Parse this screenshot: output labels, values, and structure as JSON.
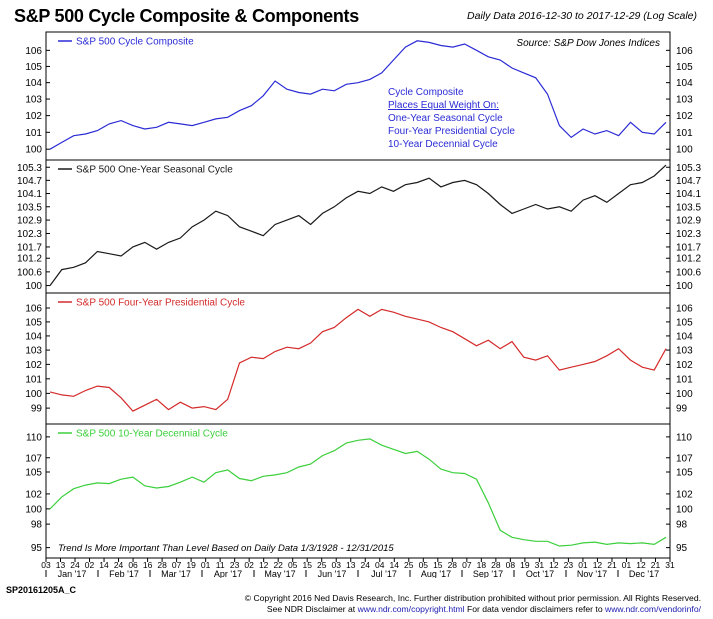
{
  "title": "S&P 500 Cycle Composite & Components",
  "subtitle": "Daily Data 2016-12-30 to 2017-12-29 (Log Scale)",
  "footer_id": "SP20161205A_C",
  "copyright_line1": "© Copyright 2016 Ned Davis Research, Inc. Further distribution prohibited without prior permission. All Rights Reserved.",
  "copyright_line2_prefix": "See NDR Disclaimer at ",
  "copyright_link1": "www.ndr.com/copyright.html",
  "copyright_line2_mid": "   For data vendor disclaimers refer to ",
  "copyright_link2": "www.ndr.com/vendorinfo/",
  "source": "Source:   S&P Dow Jones Indices",
  "annotation_box": [
    "Cycle Composite",
    "Places Equal Weight On:",
    "One-Year Seasonal Cycle",
    "Four-Year Presidential Cycle",
    "10-Year Decennial Cycle"
  ],
  "bottom_note": "Trend Is More Important Than Level Based on Daily Data 1/3/1928 - 12/31/2015",
  "colors": {
    "composite": "#2b2bd6",
    "seasonal": "#1a1a1a",
    "presidential": "#d42a2a",
    "decennial": "#3ccf3c"
  },
  "chart_data": [
    {
      "type": "line",
      "series": [
        {
          "name": "S&P 500 Cycle Composite",
          "x": [
            0,
            1,
            2,
            3,
            4,
            5,
            6,
            7,
            8,
            9,
            10,
            11,
            12,
            13,
            14,
            15,
            16,
            17,
            18,
            19,
            20,
            21,
            22,
            23,
            24,
            25,
            26,
            27,
            28,
            29,
            30,
            31,
            32,
            33,
            34,
            35,
            36,
            37,
            38,
            39,
            40,
            41,
            42,
            43,
            44,
            45,
            46,
            47,
            48,
            49,
            50,
            51,
            52
          ],
          "values": [
            100.0,
            100.4,
            100.8,
            100.9,
            101.1,
            101.5,
            101.7,
            101.4,
            101.2,
            101.3,
            101.6,
            101.5,
            101.4,
            101.6,
            101.8,
            101.9,
            102.3,
            102.6,
            103.2,
            104.1,
            103.6,
            103.4,
            103.3,
            103.6,
            103.5,
            103.9,
            104.0,
            104.2,
            104.6,
            105.4,
            106.2,
            106.6,
            106.5,
            106.3,
            106.2,
            106.4,
            106.0,
            105.6,
            105.4,
            104.9,
            104.6,
            104.3,
            103.3,
            101.4,
            100.7,
            101.2,
            100.9,
            101.1,
            100.8,
            101.6,
            101.0,
            100.9,
            101.6
          ]
        }
      ],
      "yticks": [
        100,
        101,
        102,
        103,
        104,
        105,
        106
      ],
      "ylim": [
        99.6,
        106.9
      ],
      "log": true
    },
    {
      "type": "line",
      "series": [
        {
          "name": "S&P 500 One-Year Seasonal Cycle",
          "x": [
            0,
            1,
            2,
            3,
            4,
            5,
            6,
            7,
            8,
            9,
            10,
            11,
            12,
            13,
            14,
            15,
            16,
            17,
            18,
            19,
            20,
            21,
            22,
            23,
            24,
            25,
            26,
            27,
            28,
            29,
            30,
            31,
            32,
            33,
            34,
            35,
            36,
            37,
            38,
            39,
            40,
            41,
            42,
            43,
            44,
            45,
            46,
            47,
            48,
            49,
            50,
            51,
            52
          ],
          "values": [
            100.0,
            100.7,
            100.8,
            101.0,
            101.5,
            101.4,
            101.3,
            101.7,
            101.9,
            101.6,
            101.9,
            102.1,
            102.6,
            102.9,
            103.3,
            103.1,
            102.6,
            102.4,
            102.2,
            102.7,
            102.9,
            103.1,
            102.7,
            103.2,
            103.5,
            103.9,
            104.2,
            104.1,
            104.4,
            104.2,
            104.5,
            104.6,
            104.8,
            104.4,
            104.6,
            104.7,
            104.5,
            104.1,
            103.6,
            103.2,
            103.4,
            103.6,
            103.4,
            103.5,
            103.3,
            103.8,
            104.0,
            103.7,
            104.1,
            104.5,
            104.6,
            104.9,
            105.4
          ]
        }
      ],
      "yticks": [
        100.0,
        100.6,
        101.2,
        101.7,
        102.3,
        102.9,
        103.5,
        104.1,
        104.7,
        105.3
      ],
      "ylim": [
        99.85,
        105.45
      ],
      "log": true
    },
    {
      "type": "line",
      "series": [
        {
          "name": "S&P 500 Four-Year Presidential Cycle",
          "x": [
            0,
            1,
            2,
            3,
            4,
            5,
            6,
            7,
            8,
            9,
            10,
            11,
            12,
            13,
            14,
            15,
            16,
            17,
            18,
            19,
            20,
            21,
            22,
            23,
            24,
            25,
            26,
            27,
            28,
            29,
            30,
            31,
            32,
            33,
            34,
            35,
            36,
            37,
            38,
            39,
            40,
            41,
            42,
            43,
            44,
            45,
            46,
            47,
            48,
            49,
            50,
            51,
            52
          ],
          "values": [
            100.1,
            99.9,
            99.8,
            100.2,
            100.5,
            100.4,
            99.7,
            98.8,
            99.2,
            99.6,
            98.9,
            99.4,
            99.0,
            99.1,
            98.9,
            99.6,
            102.1,
            102.5,
            102.4,
            102.9,
            103.2,
            103.1,
            103.5,
            104.3,
            104.6,
            105.3,
            105.9,
            105.4,
            105.9,
            105.7,
            105.4,
            105.2,
            105.0,
            104.6,
            104.3,
            103.8,
            103.3,
            103.7,
            103.1,
            103.6,
            102.5,
            102.3,
            102.6,
            101.6,
            101.8,
            102.0,
            102.2,
            102.6,
            103.1,
            102.3,
            101.8,
            101.6,
            103.1
          ]
        }
      ],
      "yticks": [
        99,
        100,
        101,
        102,
        103,
        104,
        105,
        106
      ],
      "ylim": [
        98.2,
        106.8
      ],
      "log": true
    },
    {
      "type": "line",
      "series": [
        {
          "name": "S&P 500 10-Year Decennial Cycle",
          "x": [
            0,
            1,
            2,
            3,
            4,
            5,
            6,
            7,
            8,
            9,
            10,
            11,
            12,
            13,
            14,
            15,
            16,
            17,
            18,
            19,
            20,
            21,
            22,
            23,
            24,
            25,
            26,
            27,
            28,
            29,
            30,
            31,
            32,
            33,
            34,
            35,
            36,
            37,
            38,
            39,
            40,
            41,
            42,
            43,
            44,
            45,
            46,
            47,
            48,
            49,
            50,
            51,
            52
          ],
          "values": [
            100.0,
            101.6,
            102.7,
            103.2,
            103.5,
            103.4,
            104.0,
            104.3,
            103.1,
            102.8,
            103.0,
            103.6,
            104.3,
            103.6,
            104.9,
            105.3,
            104.1,
            103.8,
            104.4,
            104.6,
            104.9,
            105.7,
            106.1,
            107.3,
            108.0,
            109.1,
            109.5,
            109.7,
            108.8,
            108.2,
            107.6,
            107.9,
            106.8,
            105.4,
            104.9,
            104.8,
            104.0,
            100.8,
            97.2,
            96.3,
            96.0,
            95.8,
            95.8,
            95.2,
            95.3,
            95.6,
            95.7,
            95.4,
            95.6,
            95.5,
            95.6,
            95.4,
            96.3
          ]
        }
      ],
      "yticks": [
        95,
        98,
        100,
        102,
        105,
        107,
        110
      ],
      "ylim": [
        94.2,
        111.3
      ],
      "log": true
    }
  ],
  "x_axis": {
    "day_ticks": [
      "03",
      "13",
      "24",
      "02",
      "14",
      "24",
      "06",
      "16",
      "28",
      "07",
      "19",
      "01",
      "11",
      "23",
      "02",
      "12",
      "22",
      "05",
      "15",
      "25",
      "03",
      "13",
      "24",
      "04",
      "14",
      "25",
      "05",
      "15",
      "28",
      "07",
      "18",
      "28",
      "08",
      "19",
      "31",
      "12",
      "23",
      "01",
      "12",
      "21",
      "01",
      "12",
      "21",
      "31"
    ],
    "months": [
      "Jan '17",
      "Feb '17",
      "Mar '17",
      "Apr '17",
      "May '17",
      "Jun '17",
      "Jul '17",
      "Aug '17",
      "Sep '17",
      "Oct '17",
      "Nov '17",
      "Dec '17"
    ]
  }
}
